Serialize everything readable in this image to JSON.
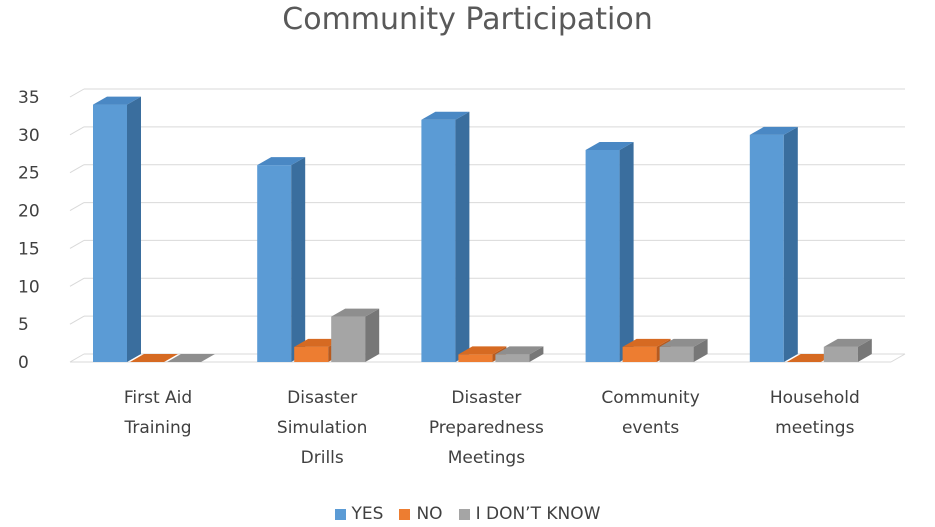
{
  "chart_data": {
    "type": "bar",
    "title": "Community Participation",
    "categories": [
      [
        "First Aid",
        "Training"
      ],
      [
        "Disaster",
        "Simulation",
        "Drills"
      ],
      [
        "Disaster",
        "Preparedness",
        "Meetings"
      ],
      [
        "Community",
        "events"
      ],
      [
        "Household",
        "meetings"
      ]
    ],
    "series": [
      {
        "name": "YES",
        "values": [
          34,
          26,
          32,
          28,
          30
        ],
        "color": "#5B9BD5",
        "side": "#3A6E9E",
        "top": "#4A88C4"
      },
      {
        "name": "NO",
        "values": [
          0,
          2,
          1,
          2,
          0
        ],
        "color": "#ED7D31",
        "side": "#B85A1E",
        "top": "#D66A22"
      },
      {
        "name": "I DON’T KNOW",
        "values": [
          0,
          6,
          1,
          2,
          2
        ],
        "color": "#A5A5A5",
        "side": "#777777",
        "top": "#8E8E8E"
      }
    ],
    "ylim": [
      0,
      35
    ],
    "yticks": [
      "0",
      "5",
      "10",
      "15",
      "20",
      "25",
      "30",
      "35"
    ],
    "grid": true,
    "legend_position": "bottom"
  }
}
